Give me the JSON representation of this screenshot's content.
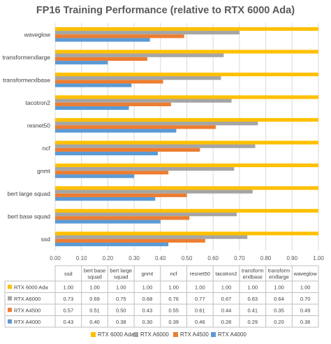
{
  "chart_data": {
    "type": "bar",
    "orientation": "horizontal",
    "title": "FP16 Training Performance (relative to RTX 6000 Ada)",
    "categories": [
      "ssd",
      "bert base squad",
      "bert large squad",
      "gnmt",
      "ncf",
      "resnet50",
      "tacotron2",
      "transformerxlbase",
      "transformerxllarge",
      "waveglow"
    ],
    "table_headers": [
      "ssd",
      "bert base squad",
      "bert large squad",
      "gnmt",
      "ncf",
      "resnet50",
      "tacotron2",
      "transform erxlbase",
      "transform erxllarge",
      "waveglow"
    ],
    "series": [
      {
        "name": "RTX 6000 Ada",
        "color": "#FFC000",
        "values": [
          1.0,
          1.0,
          1.0,
          1.0,
          1.0,
          1.0,
          1.0,
          1.0,
          1.0,
          1.0
        ],
        "labels": [
          "1.00",
          "1.00",
          "1.00",
          "1.00",
          "1.00",
          "1.00",
          "1.00",
          "1.00",
          "1.00",
          "1.00"
        ]
      },
      {
        "name": "RTX A6000",
        "color": "#A5A5A5",
        "values": [
          0.73,
          0.69,
          0.75,
          0.68,
          0.76,
          0.77,
          0.67,
          0.63,
          0.64,
          0.7
        ],
        "labels": [
          "0.73",
          "0.69",
          "0.75",
          "0.68",
          "0.76",
          "0.77",
          "0.67",
          "0.63",
          "0.64",
          "0.70"
        ]
      },
      {
        "name": "RTX A4500",
        "color": "#ED7D31",
        "values": [
          0.57,
          0.51,
          0.5,
          0.43,
          0.55,
          0.61,
          0.44,
          0.41,
          0.35,
          0.49
        ],
        "labels": [
          "0.57",
          "0.51",
          "0.50",
          "0.43",
          "0.55",
          "0.61",
          "0.44",
          "0.41",
          "0.35",
          "0.49"
        ]
      },
      {
        "name": "RTX A4000",
        "color": "#5B9BD5",
        "values": [
          0.43,
          0.4,
          0.38,
          0.3,
          0.39,
          0.46,
          0.28,
          0.29,
          0.2,
          0.36
        ],
        "labels": [
          "0.43",
          "0.40",
          "0.38",
          "0.30",
          "0.39",
          "0.46",
          "0.28",
          "0.29",
          "0.20",
          "0.36"
        ]
      }
    ],
    "xlim": [
      0,
      1.0
    ],
    "xticks": [
      "0.00",
      "0.10",
      "0.20",
      "0.30",
      "0.40",
      "0.50",
      "0.60",
      "0.70",
      "0.80",
      "0.90",
      "1.00"
    ],
    "grid": true,
    "legend": "bottom",
    "data_table": true
  }
}
